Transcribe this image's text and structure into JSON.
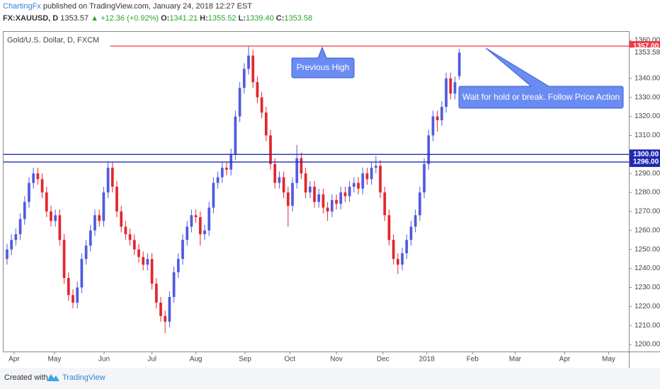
{
  "header": {
    "author": "ChartingFx",
    "published": "published on TradingView.com, January 24, 2018 12:27 EST",
    "symbol": "FX:XAUUSD, D",
    "last": "1353.57",
    "change": "▲ +12.36 (+0.92%)",
    "o_label": "O:",
    "o": "1341.21",
    "h_label": "H:",
    "h": "1355.52",
    "l_label": "L:",
    "l": "1339.40",
    "c_label": "C:",
    "c": "1353.58"
  },
  "footer": {
    "created": "Created with",
    "brand": "TradingView"
  },
  "chart_data": {
    "type": "candlestick",
    "title": "Gold/U.S. Dollar, D, FXCM",
    "up_color": "#4f5be0",
    "down_color": "#e3262d",
    "candles": [
      [
        1245,
        1253,
        1242,
        1250
      ],
      [
        1250,
        1258,
        1247,
        1255
      ],
      [
        1255,
        1261,
        1252,
        1258
      ],
      [
        1258,
        1269,
        1255,
        1266
      ],
      [
        1266,
        1278,
        1263,
        1275
      ],
      [
        1275,
        1288,
        1272,
        1285
      ],
      [
        1285,
        1293,
        1282,
        1290
      ],
      [
        1290,
        1293,
        1284,
        1287
      ],
      [
        1287,
        1290,
        1277,
        1280
      ],
      [
        1280,
        1283,
        1267,
        1270
      ],
      [
        1270,
        1273,
        1262,
        1265
      ],
      [
        1265,
        1271,
        1262,
        1268
      ],
      [
        1268,
        1271,
        1252,
        1255
      ],
      [
        1255,
        1258,
        1232,
        1235
      ],
      [
        1235,
        1238,
        1223,
        1226
      ],
      [
        1226,
        1229,
        1219,
        1222
      ],
      [
        1222,
        1233,
        1219,
        1230
      ],
      [
        1230,
        1248,
        1227,
        1245
      ],
      [
        1245,
        1255,
        1242,
        1252
      ],
      [
        1252,
        1263,
        1249,
        1260
      ],
      [
        1260,
        1271,
        1257,
        1268
      ],
      [
        1268,
        1271,
        1262,
        1265
      ],
      [
        1265,
        1283,
        1262,
        1280
      ],
      [
        1280,
        1296,
        1277,
        1293
      ],
      [
        1293,
        1296,
        1280,
        1283
      ],
      [
        1283,
        1286,
        1267,
        1270
      ],
      [
        1270,
        1273,
        1259,
        1262
      ],
      [
        1262,
        1265,
        1255,
        1258
      ],
      [
        1258,
        1261,
        1252,
        1255
      ],
      [
        1255,
        1258,
        1247,
        1250
      ],
      [
        1250,
        1253,
        1243,
        1246
      ],
      [
        1246,
        1249,
        1239,
        1242
      ],
      [
        1242,
        1248,
        1239,
        1245
      ],
      [
        1245,
        1248,
        1229,
        1232
      ],
      [
        1232,
        1235,
        1219,
        1222
      ],
      [
        1222,
        1225,
        1212,
        1215
      ],
      [
        1215,
        1218,
        1206,
        1212
      ],
      [
        1212,
        1228,
        1209,
        1225
      ],
      [
        1225,
        1241,
        1222,
        1238
      ],
      [
        1238,
        1248,
        1235,
        1245
      ],
      [
        1245,
        1258,
        1242,
        1255
      ],
      [
        1255,
        1265,
        1252,
        1262
      ],
      [
        1262,
        1271,
        1259,
        1268
      ],
      [
        1268,
        1271,
        1264,
        1267
      ],
      [
        1267,
        1270,
        1252,
        1258
      ],
      [
        1258,
        1263,
        1255,
        1260
      ],
      [
        1260,
        1275,
        1257,
        1272
      ],
      [
        1272,
        1288,
        1269,
        1285
      ],
      [
        1285,
        1291,
        1282,
        1288
      ],
      [
        1288,
        1296,
        1285,
        1293
      ],
      [
        1293,
        1296,
        1289,
        1292
      ],
      [
        1292,
        1303,
        1289,
        1300
      ],
      [
        1300,
        1323,
        1297,
        1320
      ],
      [
        1320,
        1338,
        1317,
        1335
      ],
      [
        1335,
        1348,
        1332,
        1345
      ],
      [
        1345,
        1357,
        1342,
        1352
      ],
      [
        1352,
        1355,
        1335,
        1338
      ],
      [
        1338,
        1341,
        1327,
        1330
      ],
      [
        1330,
        1333,
        1319,
        1322
      ],
      [
        1322,
        1325,
        1307,
        1310
      ],
      [
        1310,
        1313,
        1292,
        1295
      ],
      [
        1295,
        1298,
        1282,
        1285
      ],
      [
        1285,
        1291,
        1282,
        1288
      ],
      [
        1288,
        1291,
        1277,
        1280
      ],
      [
        1280,
        1283,
        1262,
        1273
      ],
      [
        1273,
        1288,
        1270,
        1285
      ],
      [
        1285,
        1305,
        1282,
        1298
      ],
      [
        1298,
        1301,
        1287,
        1290
      ],
      [
        1290,
        1293,
        1277,
        1280
      ],
      [
        1280,
        1286,
        1277,
        1283
      ],
      [
        1283,
        1286,
        1272,
        1275
      ],
      [
        1275,
        1282,
        1272,
        1279
      ],
      [
        1279,
        1282,
        1269,
        1272
      ],
      [
        1272,
        1275,
        1265,
        1270
      ],
      [
        1270,
        1279,
        1267,
        1276
      ],
      [
        1276,
        1279,
        1271,
        1274
      ],
      [
        1274,
        1283,
        1271,
        1280
      ],
      [
        1280,
        1283,
        1275,
        1278
      ],
      [
        1278,
        1286,
        1275,
        1283
      ],
      [
        1283,
        1288,
        1280,
        1285
      ],
      [
        1285,
        1288,
        1279,
        1282
      ],
      [
        1282,
        1293,
        1279,
        1290
      ],
      [
        1290,
        1293,
        1284,
        1287
      ],
      [
        1287,
        1296,
        1284,
        1293
      ],
      [
        1293,
        1299,
        1290,
        1294
      ],
      [
        1294,
        1297,
        1277,
        1280
      ],
      [
        1280,
        1283,
        1265,
        1268
      ],
      [
        1268,
        1271,
        1252,
        1255
      ],
      [
        1255,
        1258,
        1242,
        1245
      ],
      [
        1245,
        1248,
        1237,
        1242
      ],
      [
        1242,
        1251,
        1239,
        1248
      ],
      [
        1248,
        1258,
        1245,
        1255
      ],
      [
        1255,
        1265,
        1252,
        1262
      ],
      [
        1262,
        1271,
        1259,
        1268
      ],
      [
        1268,
        1283,
        1265,
        1280
      ],
      [
        1280,
        1298,
        1277,
        1295
      ],
      [
        1295,
        1313,
        1292,
        1310
      ],
      [
        1310,
        1323,
        1307,
        1320
      ],
      [
        1320,
        1323,
        1312,
        1318
      ],
      [
        1318,
        1328,
        1315,
        1325
      ],
      [
        1325,
        1343,
        1322,
        1340
      ],
      [
        1340,
        1343,
        1329,
        1332
      ],
      [
        1332,
        1341,
        1329,
        1338
      ],
      [
        1341.21,
        1355.52,
        1339.4,
        1353.58
      ]
    ],
    "xlim": [
      -0.8,
      141.6
    ],
    "xticks": [
      {
        "value": 1.6,
        "label": "Apr"
      },
      {
        "value": 10.8,
        "label": "May"
      },
      {
        "value": 22.1,
        "label": "Jun"
      },
      {
        "value": 33,
        "label": "Jul"
      },
      {
        "value": 43,
        "label": "Aug"
      },
      {
        "value": 54.2,
        "label": "Sep"
      },
      {
        "value": 64.4,
        "label": "Oct"
      },
      {
        "value": 75,
        "label": "Nov"
      },
      {
        "value": 85.6,
        "label": "Dec"
      },
      {
        "value": 95.6,
        "label": "2018"
      },
      {
        "value": 106,
        "label": "Feb"
      },
      {
        "value": 115.7,
        "label": "Mar"
      },
      {
        "value": 127,
        "label": "Apr"
      },
      {
        "value": 137,
        "label": "May"
      }
    ],
    "ylim": [
      1196.3,
      1364.5
    ],
    "yticks": [
      {
        "value": 1360,
        "label": "1360.00"
      },
      {
        "value": 1340,
        "label": "1340.00"
      },
      {
        "value": 1330,
        "label": "1330.00"
      },
      {
        "value": 1320,
        "label": "1320.00"
      },
      {
        "value": 1310,
        "label": "1310.00"
      },
      {
        "value": 1290,
        "label": "1290.00"
      },
      {
        "value": 1280,
        "label": "1280.00"
      },
      {
        "value": 1270,
        "label": "1270.00"
      },
      {
        "value": 1260,
        "label": "1260.00"
      },
      {
        "value": 1250,
        "label": "1250.00"
      },
      {
        "value": 1240,
        "label": "1240.00"
      },
      {
        "value": 1230,
        "label": "1230.00"
      },
      {
        "value": 1220,
        "label": "1220.00"
      },
      {
        "value": 1210,
        "label": "1210.00"
      },
      {
        "value": 1200,
        "label": "1200.00"
      }
    ],
    "last_price": {
      "value": 1353.58,
      "label": "1353.58"
    },
    "levels": [
      {
        "value": 1357,
        "label": "1357.00",
        "color": "#f23645",
        "start": 23.5
      },
      {
        "value": 1300,
        "label": "1300.00",
        "color": "#1f2ab3",
        "start": -0.8
      },
      {
        "value": 1296,
        "label": "1296.00",
        "color": "#1f2ab3",
        "start": -0.8
      }
    ],
    "annotations": [
      "Previous High",
      "Wait for hold or break. Follow Price Action"
    ]
  }
}
